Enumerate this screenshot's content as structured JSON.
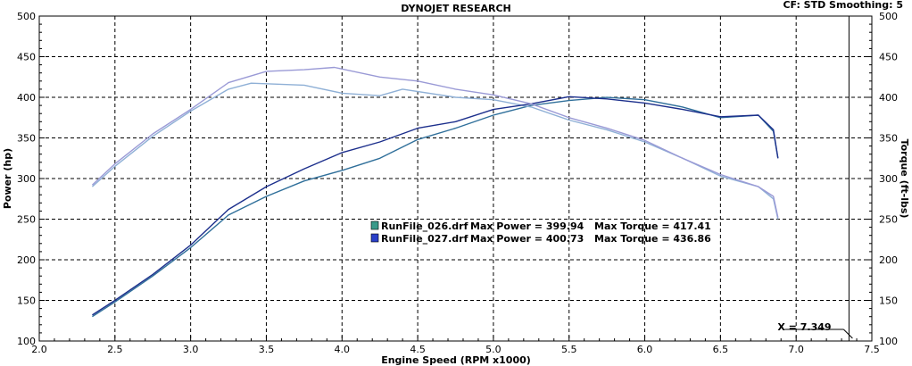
{
  "header": {
    "title": "DYNOJET RESEARCH",
    "right_info": "CF: STD  Smoothing: 5"
  },
  "chart_data": {
    "type": "line",
    "title": "DYNOJET RESEARCH",
    "xlabel": "Engine Speed (RPM x1000)",
    "ylabel": "Power (hp)",
    "y2label": "Torque (ft-lbs)",
    "xlim": [
      2.0,
      7.5
    ],
    "ylim": [
      100,
      500
    ],
    "y2lim": [
      100,
      500
    ],
    "x_ticks": [
      "2.0",
      "2.5",
      "3.0",
      "3.5",
      "4.0",
      "4.5",
      "5.0",
      "5.5",
      "6.0",
      "6.5",
      "7.0",
      "7.5"
    ],
    "y_ticks": [
      "100",
      "150",
      "200",
      "250",
      "300",
      "350",
      "400",
      "450",
      "500"
    ],
    "y2_ticks": [
      "100",
      "150",
      "200",
      "250",
      "300",
      "350",
      "400",
      "450",
      "500"
    ],
    "grid": true,
    "cursor": {
      "x": 7.349,
      "label": "X = 7.349"
    },
    "series": [
      {
        "name": "RunFile_026.drf",
        "kind": "power",
        "color": "#2f6f9a",
        "x": [
          2.35,
          2.5,
          2.75,
          3.0,
          3.25,
          3.5,
          3.75,
          4.0,
          4.25,
          4.5,
          4.75,
          5.0,
          5.25,
          5.5,
          5.75,
          6.0,
          6.25,
          6.5,
          6.75,
          6.85,
          6.88
        ],
        "y": [
          130,
          148,
          180,
          215,
          255,
          278,
          297,
          310,
          325,
          348,
          362,
          378,
          390,
          396,
          399.94,
          397,
          388,
          375,
          378,
          358,
          325
        ]
      },
      {
        "name": "RunFile_026.drf",
        "kind": "torque",
        "color": "#8fb0d6",
        "x": [
          2.35,
          2.5,
          2.75,
          3.0,
          3.25,
          3.4,
          3.75,
          4.0,
          4.25,
          4.4,
          4.75,
          5.0,
          5.25,
          5.5,
          5.75,
          6.0,
          6.25,
          6.5,
          6.75,
          6.85,
          6.88
        ],
        "y": [
          290,
          315,
          352,
          383,
          410,
          417.41,
          415,
          405,
          402,
          410,
          400,
          397,
          388,
          372,
          360,
          345,
          325,
          303,
          290,
          275,
          250
        ]
      },
      {
        "name": "RunFile_027.drf",
        "kind": "power",
        "color": "#1c2f8c",
        "x": [
          2.35,
          2.5,
          2.75,
          3.0,
          3.25,
          3.5,
          3.75,
          4.0,
          4.25,
          4.5,
          4.75,
          5.0,
          5.25,
          5.5,
          5.75,
          6.0,
          6.25,
          6.5,
          6.75,
          6.85,
          6.88
        ],
        "y": [
          132,
          150,
          182,
          218,
          262,
          290,
          312,
          332,
          345,
          362,
          370,
          385,
          392,
          400.73,
          398,
          393,
          385,
          376,
          378,
          360,
          325
        ]
      },
      {
        "name": "RunFile_027.drf",
        "kind": "torque",
        "color": "#9a9ad6",
        "x": [
          2.35,
          2.5,
          2.75,
          3.0,
          3.25,
          3.5,
          3.75,
          3.95,
          4.25,
          4.5,
          4.75,
          5.0,
          5.25,
          5.5,
          5.75,
          6.0,
          6.25,
          6.5,
          6.75,
          6.85,
          6.88
        ],
        "y": [
          292,
          318,
          355,
          385,
          418,
          432,
          434,
          436.86,
          425,
          420,
          410,
          403,
          392,
          375,
          362,
          347,
          325,
          305,
          290,
          278,
          252
        ]
      }
    ],
    "legend": [
      {
        "file": "RunFile_026.drf",
        "power_label": "Max Power = 399.94",
        "torque_label": "Max Torque = 417.41",
        "swatch": "#3a9a8a"
      },
      {
        "file": "RunFile_027.drf",
        "power_label": "Max Power = 400.73",
        "torque_label": "Max Torque = 436.86",
        "swatch": "#2a3fc8"
      }
    ]
  }
}
